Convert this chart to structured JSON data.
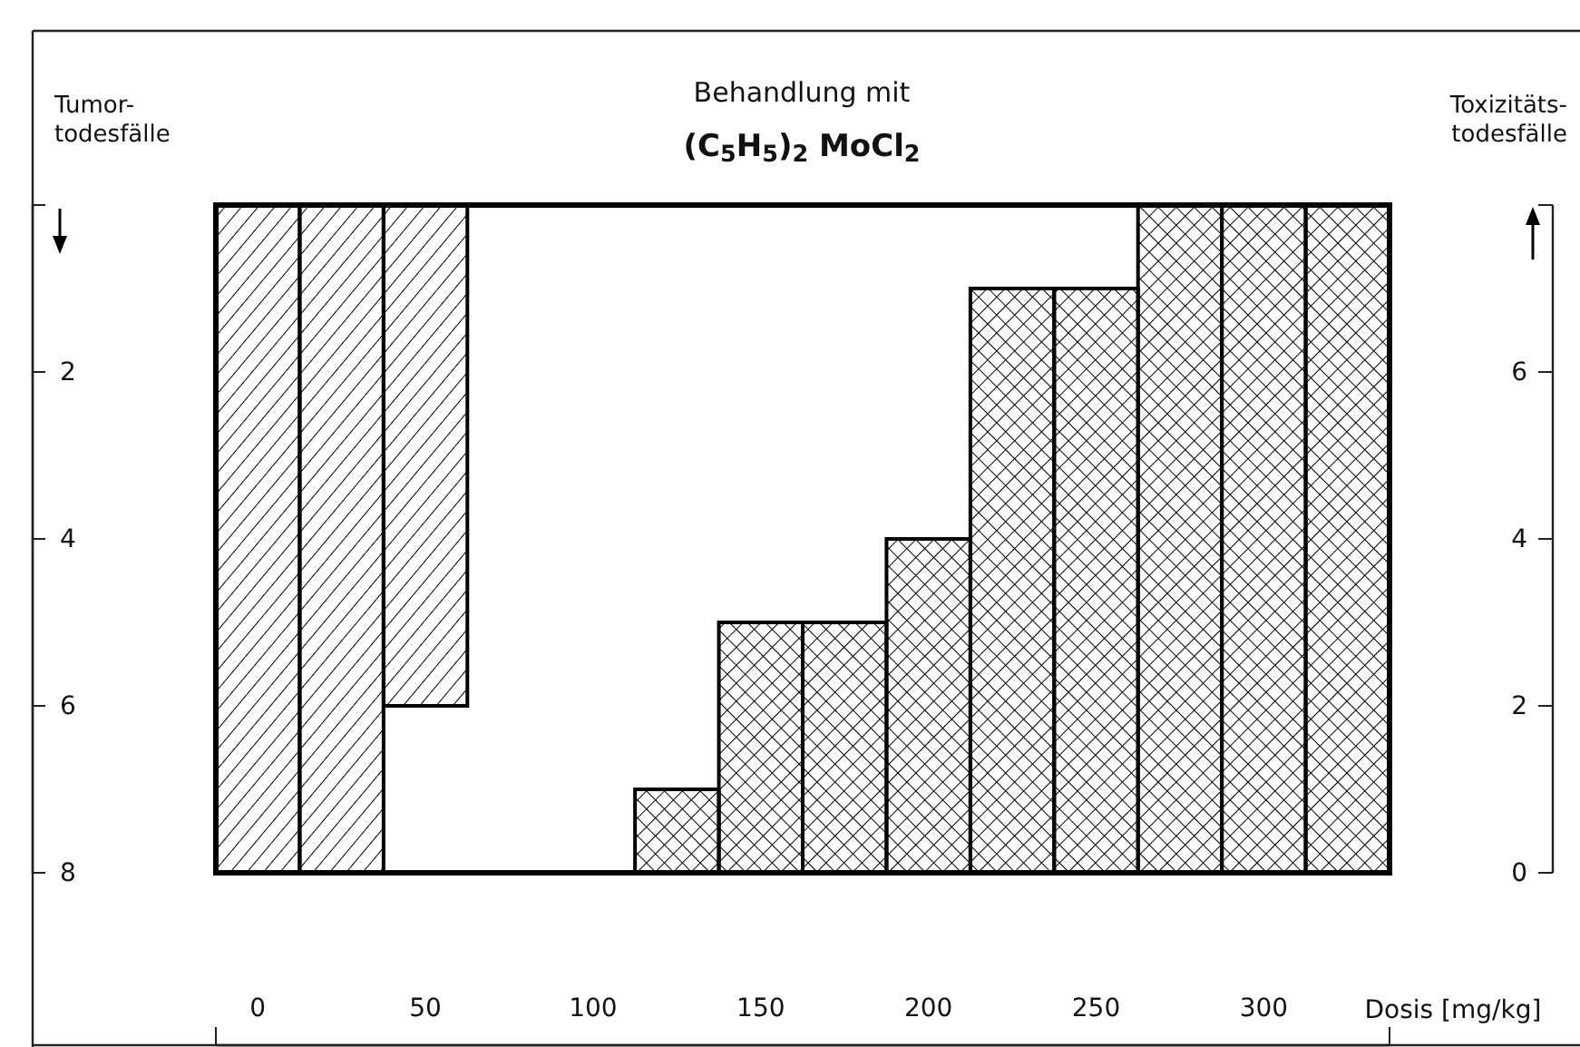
{
  "chart_data": {
    "type": "bar",
    "title": "Behandlung mit",
    "subtitle": "(C$_{5}$H$_{5}$)$_{2}$ MoCl$_{2}$",
    "xlabel": "Dosis [mg/kg]",
    "ylabel": "Tumor-todesfälle",
    "y2label": "Toxizitäts-todesfälle",
    "x": [
      0,
      25,
      50,
      75,
      100,
      125,
      150,
      175,
      200,
      225,
      250,
      275,
      300,
      325
    ],
    "xlim": [
      -12.5,
      337.5
    ],
    "xticks": [
      {
        "value": -12.5,
        "label": null
      },
      0,
      50,
      100,
      150,
      200,
      250,
      300,
      {
        "value": 337.5,
        "label": null
      }
    ],
    "ylim": [
      8,
      0
    ],
    "yticks": [
      {
        "value": 0,
        "label": null
      },
      2,
      4,
      6,
      8
    ],
    "y2lim": [
      0,
      8
    ],
    "y2ticks": [
      0,
      2,
      4,
      6,
      {
        "value": 8,
        "label": null
      }
    ],
    "series": [
      {
        "color": "#000000",
        "values": [
          8,
          8,
          6,
          0,
          0,
          0,
          0,
          0,
          0,
          0,
          0,
          0,
          0,
          0
        ]
      },
      {
        "color": "#000000",
        "axis": "y2",
        "values": [
          0,
          0,
          0,
          0,
          0,
          1,
          3,
          3,
          4,
          7,
          7,
          8,
          8,
          8
        ]
      }
    ]
  }
}
